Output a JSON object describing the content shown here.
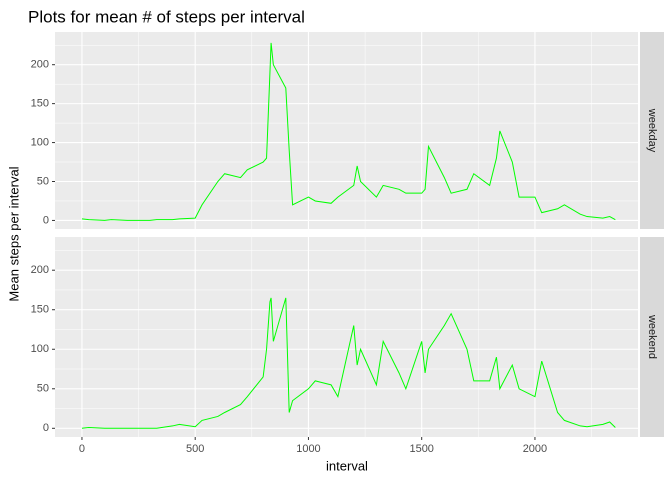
{
  "chart_data": {
    "type": "line",
    "title": "Plots for mean # of steps per interval",
    "x_label": "interval",
    "y_label": "Mean steps per interval",
    "x": [
      0,
      30,
      100,
      130,
      200,
      230,
      300,
      330,
      400,
      430,
      500,
      530,
      600,
      630,
      700,
      730,
      800,
      815,
      830,
      835,
      845,
      900,
      915,
      930,
      1000,
      1030,
      1100,
      1130,
      1200,
      1215,
      1230,
      1300,
      1330,
      1400,
      1430,
      1500,
      1515,
      1530,
      1600,
      1630,
      1700,
      1730,
      1800,
      1830,
      1845,
      1900,
      1930,
      2000,
      2030,
      2100,
      2130,
      2200,
      2230,
      2300,
      2330,
      2355
    ],
    "series": [
      {
        "name": "weekday",
        "color": "#00ff00",
        "values": [
          2,
          1,
          0,
          1,
          0,
          0,
          0,
          1,
          1,
          2,
          3,
          20,
          50,
          60,
          55,
          65,
          75,
          80,
          190,
          228,
          200,
          170,
          90,
          20,
          30,
          25,
          22,
          30,
          45,
          70,
          50,
          30,
          45,
          40,
          35,
          35,
          40,
          95,
          55,
          35,
          40,
          60,
          45,
          80,
          115,
          75,
          30,
          30,
          10,
          15,
          20,
          8,
          5,
          3,
          5,
          1
        ]
      },
      {
        "name": "weekend",
        "color": "#00ff00",
        "values": [
          0,
          1,
          0,
          0,
          0,
          0,
          0,
          0,
          3,
          5,
          2,
          10,
          15,
          20,
          30,
          40,
          65,
          100,
          160,
          165,
          110,
          165,
          20,
          35,
          50,
          60,
          55,
          40,
          130,
          80,
          100,
          55,
          110,
          70,
          50,
          110,
          70,
          100,
          130,
          145,
          100,
          60,
          60,
          90,
          50,
          80,
          50,
          40,
          85,
          20,
          10,
          3,
          2,
          5,
          8,
          1
        ]
      }
    ],
    "xlim": [
      -119,
      2455
    ],
    "ylim": [
      -11,
      242
    ],
    "xticks": [
      0,
      500,
      1000,
      1500,
      2000
    ],
    "yticks": [
      0,
      50,
      100,
      150,
      200
    ],
    "xminorticks": [
      250,
      750,
      1250,
      1750,
      2250
    ],
    "yminorticks": [
      25,
      75,
      125,
      175,
      225
    ],
    "grid": true
  }
}
